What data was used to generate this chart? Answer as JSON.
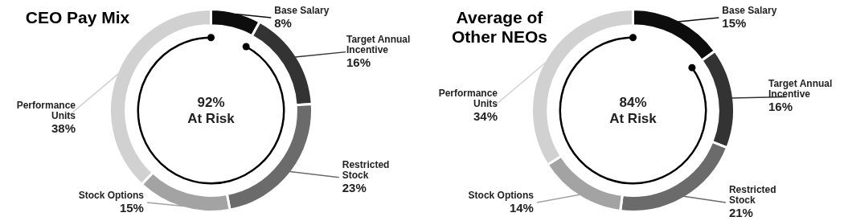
{
  "chart_data": [
    {
      "type": "donut",
      "title": "CEO Pay Mix",
      "categories": [
        "Base Salary",
        "Target Annual Incentive",
        "Restricted Stock",
        "Stock Options",
        "Performance Units"
      ],
      "values": [
        8,
        16,
        23,
        15,
        38
      ],
      "value_labels": [
        "8%",
        "16%",
        "23%",
        "15%",
        "38%"
      ],
      "colors": [
        "#0d0d0d",
        "#333333",
        "#6b6b6b",
        "#a3a3a3",
        "#d1d1d1"
      ],
      "annotations": [
        "92% At Risk"
      ],
      "legend": false
    },
    {
      "type": "donut",
      "title": "Average of Other NEOs",
      "categories": [
        "Base Salary",
        "Target Annual Incentive",
        "Restricted Stock",
        "Stock Options",
        "Performance Units"
      ],
      "values": [
        15,
        16,
        21,
        14,
        34
      ],
      "value_labels": [
        "15%",
        "16%",
        "21%",
        "14%",
        "34%"
      ],
      "colors": [
        "#0d0d0d",
        "#333333",
        "#6b6b6b",
        "#a3a3a3",
        "#d1d1d1"
      ],
      "annotations": [
        "84% At Risk"
      ],
      "legend": false
    }
  ]
}
